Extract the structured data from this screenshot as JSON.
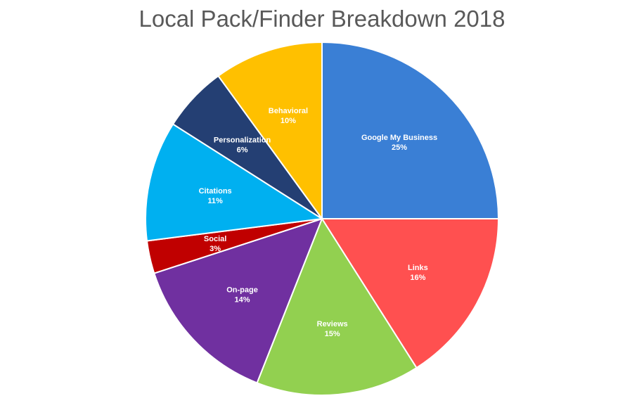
{
  "chart_data": {
    "type": "pie",
    "title": "Local Pack/Finder Breakdown 2018",
    "slices": [
      {
        "label": "Google My Business",
        "value": 25,
        "value_label": "25%",
        "color": "#3A7FD5"
      },
      {
        "label": "Links",
        "value": 16,
        "value_label": "16%",
        "color": "#FF5050"
      },
      {
        "label": "Reviews",
        "value": 15,
        "value_label": "15%",
        "color": "#92D050"
      },
      {
        "label": "On-page",
        "value": 14,
        "value_label": "14%",
        "color": "#7030A0"
      },
      {
        "label": "Social",
        "value": 3,
        "value_label": "3%",
        "color": "#C00000"
      },
      {
        "label": "Citations",
        "value": 11,
        "value_label": "11%",
        "color": "#00B0F0"
      },
      {
        "label": "Personalization",
        "value": 6,
        "value_label": "6%",
        "color": "#243F73"
      },
      {
        "label": "Behavioral",
        "value": 10,
        "value_label": "10%",
        "color": "#FFC000"
      }
    ],
    "legend": "none",
    "start": "top-clockwise"
  }
}
